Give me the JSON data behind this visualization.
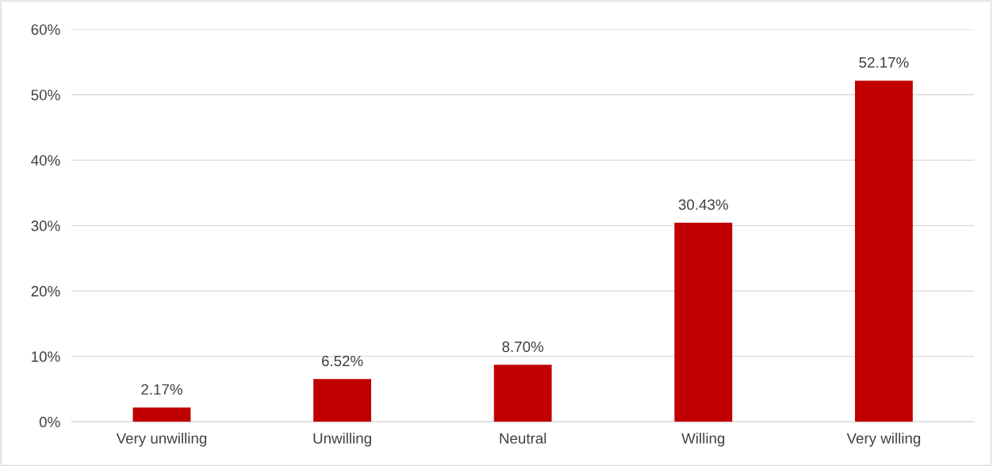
{
  "chart_data": {
    "type": "bar",
    "categories": [
      "Very unwilling",
      "Unwilling",
      "Neutral",
      "Willing",
      "Very willing"
    ],
    "values": [
      2.17,
      6.52,
      8.7,
      30.43,
      52.17
    ],
    "value_labels": [
      "2.17%",
      "6.52%",
      "8.70%",
      "30.43%",
      "52.17%"
    ],
    "color": "#c00000",
    "ylim": [
      0,
      60
    ],
    "yticks": [
      {
        "value": 0,
        "label": "0%"
      },
      {
        "value": 10,
        "label": "10%"
      },
      {
        "value": 20,
        "label": "20%"
      },
      {
        "value": 30,
        "label": "30%"
      },
      {
        "value": 40,
        "label": "40%"
      },
      {
        "value": 50,
        "label": "50%"
      },
      {
        "value": 60,
        "label": "60%"
      }
    ],
    "grid": "y",
    "legend": false
  }
}
